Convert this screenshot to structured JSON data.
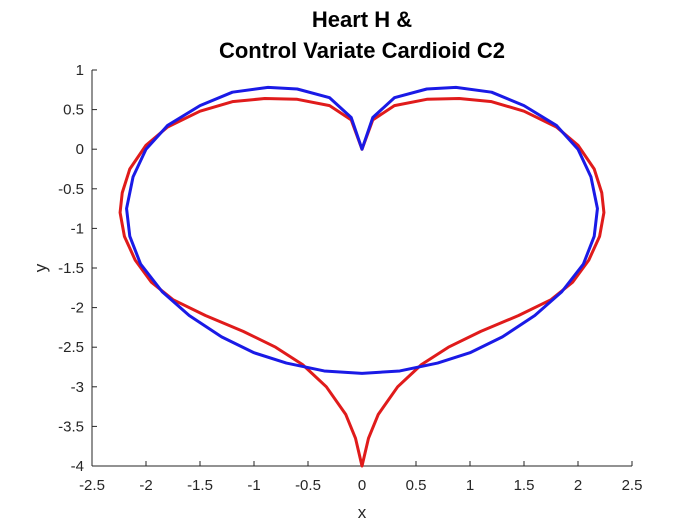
{
  "chart_data": {
    "type": "line",
    "title_lines": [
      "Heart H &",
      "Control Variate Cardioid C2"
    ],
    "xlabel": "x",
    "ylabel": "y",
    "xlim": [
      -2.5,
      2.5
    ],
    "ylim": [
      -4,
      1
    ],
    "xticks": [
      -2.5,
      -2,
      -1.5,
      -1,
      -0.5,
      0,
      0.5,
      1,
      1.5,
      2,
      2.5
    ],
    "yticks": [
      1,
      0.5,
      0,
      -0.5,
      -1,
      -1.5,
      -2,
      -2.5,
      -3,
      -3.5,
      -4
    ],
    "xtick_labels": [
      "-2.5",
      "-2",
      "-1.5",
      "-1",
      "-0.5",
      "0",
      "0.5",
      "1",
      "1.5",
      "2",
      "2.5"
    ],
    "ytick_labels": [
      "1",
      "0.5",
      "0",
      "-0.5",
      "-1",
      "-1.5",
      "-2",
      "-2.5",
      "-3",
      "-3.5",
      "-4"
    ],
    "grid": false,
    "legend": "none",
    "series": [
      {
        "color": "#e01b1b",
        "points": [
          [
            0,
            0
          ],
          [
            0.1,
            0.37
          ],
          [
            0.3,
            0.55
          ],
          [
            0.6,
            0.63
          ],
          [
            0.9,
            0.64
          ],
          [
            1.2,
            0.6
          ],
          [
            1.5,
            0.48
          ],
          [
            1.8,
            0.28
          ],
          [
            2.0,
            0.05
          ],
          [
            2.15,
            -0.25
          ],
          [
            2.22,
            -0.55
          ],
          [
            2.24,
            -0.8
          ],
          [
            2.2,
            -1.1
          ],
          [
            2.1,
            -1.4
          ],
          [
            1.95,
            -1.68
          ],
          [
            1.75,
            -1.9
          ],
          [
            1.45,
            -2.1
          ],
          [
            1.1,
            -2.3
          ],
          [
            0.8,
            -2.5
          ],
          [
            0.55,
            -2.72
          ],
          [
            0.33,
            -3.0
          ],
          [
            0.15,
            -3.35
          ],
          [
            0.06,
            -3.65
          ],
          [
            0,
            -4
          ]
        ]
      },
      {
        "color": "#1a1ae6",
        "points": [
          [
            0,
            0
          ],
          [
            0.1,
            0.4
          ],
          [
            0.3,
            0.65
          ],
          [
            0.6,
            0.76
          ],
          [
            0.87,
            0.78
          ],
          [
            1.2,
            0.72
          ],
          [
            1.5,
            0.55
          ],
          [
            1.8,
            0.3
          ],
          [
            2.0,
            0
          ],
          [
            2.12,
            -0.35
          ],
          [
            2.18,
            -0.75
          ],
          [
            2.15,
            -1.1
          ],
          [
            2.05,
            -1.45
          ],
          [
            1.85,
            -1.8
          ],
          [
            1.6,
            -2.1
          ],
          [
            1.3,
            -2.37
          ],
          [
            1.0,
            -2.57
          ],
          [
            0.7,
            -2.7
          ],
          [
            0.35,
            -2.8
          ],
          [
            0,
            -2.83
          ]
        ]
      }
    ]
  }
}
